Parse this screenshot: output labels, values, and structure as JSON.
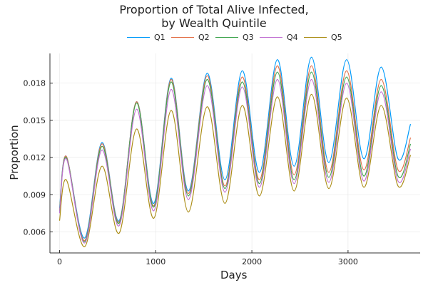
{
  "chart_data": {
    "type": "line",
    "title": "Proportion of Total Alive Infected,\nby Wealth Quintile",
    "title_lines": [
      "Proportion of Total Alive Infected,",
      "by Wealth Quintile"
    ],
    "xlabel": "Days",
    "ylabel": "Proportion",
    "xlim": [
      -100,
      3750
    ],
    "ylim": [
      0.0043,
      0.0204
    ],
    "xticks": [
      0,
      1000,
      2000,
      3000
    ],
    "yticks": [
      0.006,
      0.009,
      0.012,
      0.015,
      0.018
    ],
    "xtick_labels": [
      "0",
      "1000",
      "2000",
      "3000"
    ],
    "ytick_labels": [
      "0.006",
      "0.009",
      "0.012",
      "0.015",
      "0.018"
    ],
    "grid": true,
    "legend_position": "top-center, horizontal",
    "x": [
      0,
      70,
      260,
      440,
      620,
      800,
      980,
      1160,
      1340,
      1535,
      1720,
      1900,
      2080,
      2265,
      2440,
      2620,
      2800,
      2985,
      3165,
      3345,
      3520,
      3650
    ],
    "series": [
      {
        "name": "Q1",
        "color": "#009AFA",
        "values": [
          0.0079,
          0.0121,
          0.0055,
          0.0132,
          0.0069,
          0.0165,
          0.0083,
          0.0184,
          0.0093,
          0.0188,
          0.0102,
          0.019,
          0.0108,
          0.0199,
          0.0113,
          0.0201,
          0.0116,
          0.0199,
          0.0119,
          0.0193,
          0.0119,
          0.0147
        ]
      },
      {
        "name": "Q2",
        "color": "#E36F47",
        "values": [
          0.0077,
          0.0121,
          0.0053,
          0.0131,
          0.0068,
          0.0165,
          0.0081,
          0.0183,
          0.0091,
          0.0186,
          0.0097,
          0.0185,
          0.0102,
          0.0194,
          0.0106,
          0.0194,
          0.0108,
          0.019,
          0.011,
          0.0183,
          0.011,
          0.0136
        ]
      },
      {
        "name": "Q3",
        "color": "#3EA44E",
        "values": [
          0.0076,
          0.012,
          0.0052,
          0.0129,
          0.0067,
          0.0164,
          0.008,
          0.0181,
          0.0089,
          0.0183,
          0.0095,
          0.0181,
          0.0099,
          0.0189,
          0.0102,
          0.0189,
          0.0104,
          0.0185,
          0.0105,
          0.0178,
          0.0105,
          0.0131
        ]
      },
      {
        "name": "Q4",
        "color": "#C271D2",
        "values": [
          0.0075,
          0.0119,
          0.0051,
          0.0126,
          0.0065,
          0.0159,
          0.0077,
          0.0175,
          0.0086,
          0.0178,
          0.0092,
          0.0177,
          0.0096,
          0.0183,
          0.0099,
          0.0183,
          0.01,
          0.018,
          0.0101,
          0.0173,
          0.0101,
          0.0127
        ]
      },
      {
        "name": "Q5",
        "color": "#AC8E18",
        "values": [
          0.0069,
          0.0102,
          0.0048,
          0.0113,
          0.0059,
          0.0143,
          0.0071,
          0.0158,
          0.0076,
          0.0161,
          0.0083,
          0.0162,
          0.0089,
          0.0169,
          0.0093,
          0.0171,
          0.0095,
          0.0168,
          0.0096,
          0.0162,
          0.0097,
          0.0122
        ]
      }
    ]
  }
}
